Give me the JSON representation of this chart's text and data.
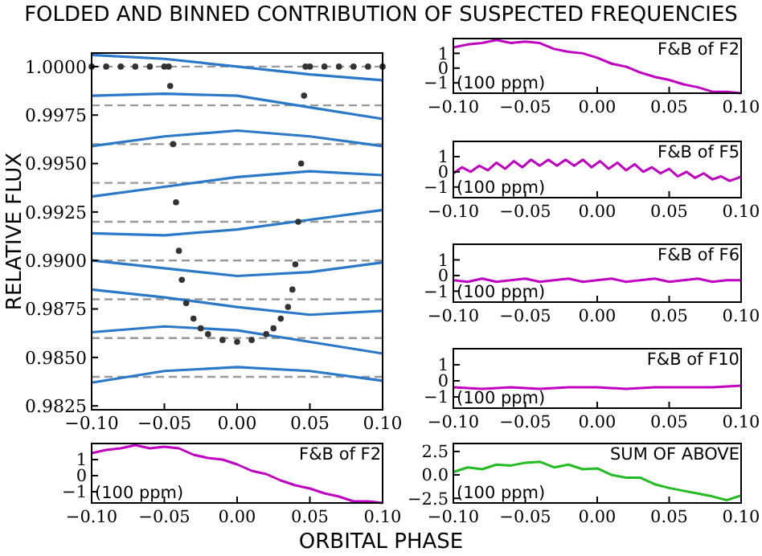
{
  "chart_data": [
    {
      "type": "line",
      "title": "FOLDED AND BINNED CONTRIBUTION OF SUSPECTED FREQUENCIES",
      "ylabel": "RELATIVE FLUX",
      "xlim": [
        -0.1,
        0.1
      ],
      "ylim": [
        0.9823,
        1.0007
      ],
      "xticks": [
        {
          "value": -0.1,
          "label": "−0.10"
        },
        {
          "value": -0.05,
          "label": "−0.05"
        },
        {
          "value": 0,
          "label": "0.00"
        },
        {
          "value": 0.05,
          "label": "0.05"
        },
        {
          "value": 0.1,
          "label": "0.10"
        }
      ],
      "yticks": [
        {
          "value": 0.9825,
          "label": "0.9825"
        },
        {
          "value": 0.985,
          "label": "0.9850"
        },
        {
          "value": 0.9875,
          "label": "0.9875"
        },
        {
          "value": 0.99,
          "label": "0.9900"
        },
        {
          "value": 0.9925,
          "label": "0.9925"
        },
        {
          "value": 0.995,
          "label": "0.9950"
        },
        {
          "value": 0.9975,
          "label": "0.9975"
        },
        {
          "value": 1,
          "label": "1.0000"
        }
      ],
      "ref_lines": [
        {
          "axis": "y",
          "value": 1.0,
          "color": "#999999",
          "line_style": "dashed"
        },
        {
          "axis": "y",
          "value": 0.998,
          "color": "#999999",
          "line_style": "dashed"
        },
        {
          "axis": "y",
          "value": 0.996,
          "color": "#999999",
          "line_style": "dashed"
        },
        {
          "axis": "y",
          "value": 0.994,
          "color": "#999999",
          "line_style": "dashed"
        },
        {
          "axis": "y",
          "value": 0.992,
          "color": "#999999",
          "line_style": "dashed"
        },
        {
          "axis": "y",
          "value": 0.99,
          "color": "#999999",
          "line_style": "dashed"
        },
        {
          "axis": "y",
          "value": 0.988,
          "color": "#999999",
          "line_style": "dashed"
        },
        {
          "axis": "y",
          "value": 0.986,
          "color": "#999999",
          "line_style": "dashed"
        },
        {
          "axis": "y",
          "value": 0.984,
          "color": "#999999",
          "line_style": "dashed"
        }
      ],
      "series": [
        {
          "type": "scatter",
          "color": "#333333",
          "x": [
            -0.1,
            -0.09,
            -0.08,
            -0.07,
            -0.06,
            -0.05,
            -0.047,
            -0.046,
            -0.044,
            -0.042,
            -0.04,
            -0.038,
            -0.035,
            -0.03,
            -0.025,
            -0.02,
            -0.01,
            0,
            0.01,
            0.02,
            0.025,
            0.03,
            0.035,
            0.038,
            0.04,
            0.042,
            0.044,
            0.046,
            0.047,
            0.05,
            0.06,
            0.07,
            0.08,
            0.09,
            0.1
          ],
          "values": [
            1.0,
            1.0,
            1.0,
            1.0,
            1.0,
            1.0,
            1.0,
            0.999,
            0.996,
            0.993,
            0.9905,
            0.989,
            0.9878,
            0.987,
            0.9865,
            0.9862,
            0.9859,
            0.9858,
            0.9859,
            0.9862,
            0.9865,
            0.987,
            0.9876,
            0.9885,
            0.9898,
            0.992,
            0.995,
            0.9985,
            1.0,
            1.0,
            1.0,
            1.0,
            1.0,
            1.0,
            1.0
          ]
        },
        {
          "type": "line",
          "color": "#2a78c8",
          "x": [
            -0.1,
            -0.05,
            0,
            0.05,
            0.1
          ],
          "values": [
            1.0006,
            1.0004,
            1.0,
            0.9996,
            0.9993
          ]
        },
        {
          "type": "line",
          "color": "#2a78c8",
          "x": [
            -0.1,
            -0.05,
            0,
            0.05,
            0.1
          ],
          "values": [
            0.9985,
            0.9986,
            0.9985,
            0.9979,
            0.9973
          ]
        },
        {
          "type": "line",
          "color": "#2a78c8",
          "x": [
            -0.1,
            -0.05,
            0,
            0.05,
            0.1
          ],
          "values": [
            0.9959,
            0.9964,
            0.9967,
            0.9964,
            0.9959
          ]
        },
        {
          "type": "line",
          "color": "#2a78c8",
          "x": [
            -0.1,
            -0.05,
            0,
            0.05,
            0.1
          ],
          "values": [
            0.9933,
            0.9938,
            0.9943,
            0.9946,
            0.9944
          ]
        },
        {
          "type": "line",
          "color": "#2a78c8",
          "x": [
            -0.1,
            -0.05,
            0,
            0.05,
            0.1
          ],
          "values": [
            0.9914,
            0.9913,
            0.9916,
            0.9921,
            0.9926
          ]
        },
        {
          "type": "line",
          "color": "#2a78c8",
          "x": [
            -0.1,
            -0.05,
            0,
            0.05,
            0.1
          ],
          "values": [
            0.99,
            0.9896,
            0.9892,
            0.9894,
            0.9899
          ]
        },
        {
          "type": "line",
          "color": "#2a78c8",
          "x": [
            -0.1,
            -0.05,
            0,
            0.05,
            0.1
          ],
          "values": [
            0.9885,
            0.9881,
            0.9876,
            0.9872,
            0.9874
          ]
        },
        {
          "type": "line",
          "color": "#2a78c8",
          "x": [
            -0.1,
            -0.05,
            0,
            0.05,
            0.1
          ],
          "values": [
            0.9863,
            0.9866,
            0.9864,
            0.9858,
            0.9852
          ]
        },
        {
          "type": "line",
          "color": "#2a78c8",
          "x": [
            -0.1,
            -0.05,
            0,
            0.05,
            0.1
          ],
          "values": [
            0.9837,
            0.9843,
            0.9845,
            0.9843,
            0.9838
          ]
        }
      ]
    },
    {
      "type": "line",
      "xlabel": "ORBITAL PHASE",
      "annotations": [
        "F&B of F2",
        "(100 ppm)"
      ],
      "xlim": [
        -0.1,
        0.1
      ],
      "ylim": [
        -1.7,
        2.0
      ],
      "xticks": [
        {
          "value": -0.1,
          "label": "−0.10"
        },
        {
          "value": -0.05,
          "label": "−0.05"
        },
        {
          "value": 0,
          "label": "0.00"
        },
        {
          "value": 0.05,
          "label": "0.05"
        },
        {
          "value": 0.1,
          "label": "0.10"
        }
      ],
      "yticks": [
        {
          "value": -1,
          "label": "−1"
        },
        {
          "value": 0,
          "label": "0"
        },
        {
          "value": 1,
          "label": "1"
        }
      ],
      "series": [
        {
          "color": "#c000c0",
          "x": [
            -0.1,
            -0.09,
            -0.08,
            -0.07,
            -0.06,
            -0.05,
            -0.04,
            -0.03,
            -0.02,
            -0.01,
            0,
            0.01,
            0.02,
            0.03,
            0.04,
            0.05,
            0.06,
            0.07,
            0.08,
            0.09,
            0.1
          ],
          "values": [
            1.4,
            1.6,
            1.7,
            1.9,
            1.7,
            1.8,
            1.7,
            1.3,
            1.1,
            1.0,
            0.7,
            0.3,
            0.1,
            -0.3,
            -0.6,
            -0.8,
            -1.1,
            -1.3,
            -1.6,
            -1.6,
            -1.7
          ]
        }
      ]
    },
    {
      "type": "line",
      "annotations": [
        "F&B of F2",
        "(100 ppm)"
      ],
      "xlim": [
        -0.1,
        0.1
      ],
      "ylim": [
        -1.7,
        2.0
      ],
      "xticks": [
        {
          "value": -0.1,
          "label": "−0.10"
        },
        {
          "value": -0.05,
          "label": "−0.05"
        },
        {
          "value": 0,
          "label": "0.00"
        },
        {
          "value": 0.05,
          "label": "0.05"
        },
        {
          "value": 0.1,
          "label": "0.10"
        }
      ],
      "yticks": [
        {
          "value": -1,
          "label": "−1"
        },
        {
          "value": 0,
          "label": "0"
        },
        {
          "value": 1,
          "label": "1"
        }
      ],
      "series": [
        {
          "color": "#c000c0",
          "x": [
            -0.1,
            -0.09,
            -0.08,
            -0.07,
            -0.06,
            -0.05,
            -0.04,
            -0.03,
            -0.02,
            -0.01,
            0,
            0.01,
            0.02,
            0.03,
            0.04,
            0.05,
            0.06,
            0.07,
            0.08,
            0.09,
            0.1
          ],
          "values": [
            1.4,
            1.6,
            1.7,
            1.9,
            1.7,
            1.8,
            1.7,
            1.3,
            1.1,
            1.0,
            0.7,
            0.3,
            0.1,
            -0.3,
            -0.6,
            -0.8,
            -1.1,
            -1.3,
            -1.6,
            -1.6,
            -1.7
          ]
        }
      ]
    },
    {
      "type": "line",
      "annotations": [
        "F&B of F5",
        "(100 ppm)"
      ],
      "xlim": [
        -0.1,
        0.1
      ],
      "ylim": [
        -1.7,
        2.0
      ],
      "xticks": [
        {
          "value": -0.1,
          "label": "−0.10"
        },
        {
          "value": -0.05,
          "label": "−0.05"
        },
        {
          "value": 0,
          "label": "0.00"
        },
        {
          "value": 0.05,
          "label": "0.05"
        },
        {
          "value": 0.1,
          "label": "0.10"
        }
      ],
      "yticks": [
        {
          "value": -1,
          "label": "−1"
        },
        {
          "value": 0,
          "label": "0"
        },
        {
          "value": 1,
          "label": "1"
        }
      ],
      "series": [
        {
          "color": "#c000c0",
          "x": [
            -0.1,
            -0.094,
            -0.088,
            -0.082,
            -0.076,
            -0.07,
            -0.064,
            -0.058,
            -0.052,
            -0.046,
            -0.04,
            -0.034,
            -0.028,
            -0.022,
            -0.016,
            -0.01,
            -0.004,
            0.002,
            0.008,
            0.014,
            0.02,
            0.026,
            0.032,
            0.038,
            0.044,
            0.05,
            0.056,
            0.062,
            0.068,
            0.074,
            0.08,
            0.086,
            0.092,
            0.098,
            0.1
          ],
          "values": [
            -0.1,
            0.3,
            0.0,
            0.4,
            0.1,
            0.6,
            0.2,
            0.7,
            0.3,
            0.8,
            0.4,
            0.8,
            0.4,
            0.8,
            0.4,
            0.8,
            0.3,
            0.7,
            0.2,
            0.6,
            0.1,
            0.5,
            0.0,
            0.3,
            -0.1,
            0.2,
            -0.3,
            0.0,
            -0.4,
            -0.1,
            -0.5,
            -0.3,
            -0.6,
            -0.4,
            -0.3
          ]
        }
      ]
    },
    {
      "type": "line",
      "annotations": [
        "F&B of F6",
        "(100 ppm)"
      ],
      "xlim": [
        -0.1,
        0.1
      ],
      "ylim": [
        -1.7,
        2.0
      ],
      "xticks": [
        {
          "value": -0.1,
          "label": "−0.10"
        },
        {
          "value": -0.05,
          "label": "−0.05"
        },
        {
          "value": 0,
          "label": "0.00"
        },
        {
          "value": 0.05,
          "label": "0.05"
        },
        {
          "value": 0.1,
          "label": "0.10"
        }
      ],
      "yticks": [
        {
          "value": -1,
          "label": "−1"
        },
        {
          "value": 0,
          "label": "0"
        },
        {
          "value": 1,
          "label": "1"
        }
      ],
      "series": [
        {
          "color": "#c000c0",
          "x": [
            -0.1,
            -0.09,
            -0.08,
            -0.07,
            -0.06,
            -0.05,
            -0.04,
            -0.03,
            -0.02,
            -0.01,
            0,
            0.01,
            0.02,
            0.03,
            0.04,
            0.05,
            0.06,
            0.07,
            0.08,
            0.09,
            0.1
          ],
          "values": [
            -0.3,
            -0.4,
            -0.2,
            -0.4,
            -0.3,
            -0.2,
            -0.4,
            -0.3,
            -0.2,
            -0.4,
            -0.3,
            -0.2,
            -0.4,
            -0.3,
            -0.2,
            -0.4,
            -0.3,
            -0.2,
            -0.4,
            -0.3,
            -0.3
          ]
        }
      ]
    },
    {
      "type": "line",
      "annotations": [
        "F&B of F10",
        "(100 ppm)"
      ],
      "xlim": [
        -0.1,
        0.1
      ],
      "ylim": [
        -1.7,
        2.0
      ],
      "xticks": [
        {
          "value": -0.1,
          "label": "−0.10"
        },
        {
          "value": -0.05,
          "label": "−0.05"
        },
        {
          "value": 0,
          "label": "0.00"
        },
        {
          "value": 0.05,
          "label": "0.05"
        },
        {
          "value": 0.1,
          "label": "0.10"
        }
      ],
      "yticks": [
        {
          "value": -1,
          "label": "−1"
        },
        {
          "value": 0,
          "label": "0"
        },
        {
          "value": 1,
          "label": "1"
        }
      ],
      "series": [
        {
          "color": "#c000c0",
          "x": [
            -0.1,
            -0.08,
            -0.06,
            -0.04,
            -0.02,
            0,
            0.02,
            0.04,
            0.06,
            0.08,
            0.1
          ],
          "values": [
            -0.4,
            -0.5,
            -0.4,
            -0.5,
            -0.4,
            -0.4,
            -0.5,
            -0.4,
            -0.4,
            -0.4,
            -0.3
          ]
        }
      ]
    },
    {
      "type": "line",
      "annotations": [
        "SUM OF ABOVE",
        "(100 ppm)"
      ],
      "xlim": [
        -0.1,
        0.1
      ],
      "ylim": [
        -3.0,
        3.35
      ],
      "xticks": [
        {
          "value": -0.1,
          "label": "−0.10"
        },
        {
          "value": -0.05,
          "label": "−0.05"
        },
        {
          "value": 0,
          "label": "0.00"
        },
        {
          "value": 0.05,
          "label": "0.05"
        },
        {
          "value": 0.1,
          "label": "0.10"
        }
      ],
      "yticks": [
        {
          "value": -2.5,
          "label": "−2.5"
        },
        {
          "value": 0,
          "label": "0.0"
        },
        {
          "value": 2.5,
          "label": "2.5"
        }
      ],
      "series": [
        {
          "color": "#22bb22",
          "x": [
            -0.1,
            -0.09,
            -0.08,
            -0.07,
            -0.06,
            -0.05,
            -0.04,
            -0.03,
            -0.02,
            -0.01,
            0,
            0.01,
            0.02,
            0.03,
            0.04,
            0.05,
            0.06,
            0.07,
            0.08,
            0.09,
            0.1
          ],
          "values": [
            0.3,
            0.8,
            0.6,
            1.1,
            1.0,
            1.3,
            1.4,
            0.8,
            1.1,
            0.6,
            0.7,
            0,
            -0.3,
            -0.3,
            -1.0,
            -1.4,
            -1.7,
            -2.0,
            -2.3,
            -2.7,
            -2.2
          ]
        }
      ]
    }
  ]
}
